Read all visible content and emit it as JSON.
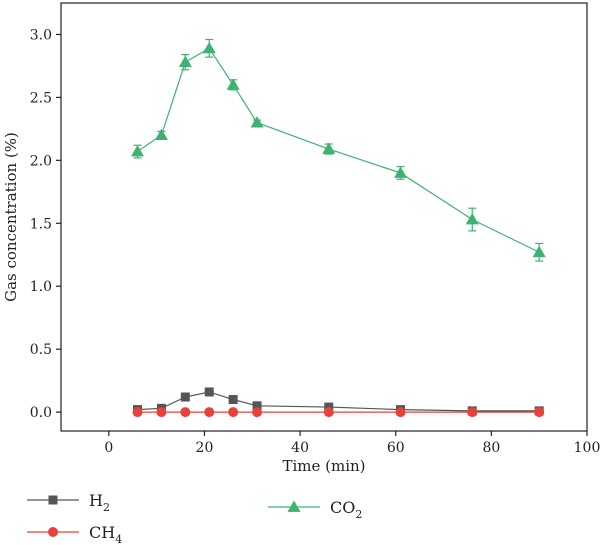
{
  "chart_data": {
    "type": "line",
    "title": "",
    "xlabel": "Time (min)",
    "ylabel": "Gas concentration (%)",
    "xlim": [
      -10,
      100
    ],
    "ylim": [
      -0.15,
      3.25
    ],
    "xticks": [
      0,
      20,
      40,
      60,
      80,
      100
    ],
    "yticks": [
      0.0,
      0.5,
      1.0,
      1.5,
      2.0,
      2.5,
      3.0
    ],
    "xtick_labels": [
      "0",
      "20",
      "40",
      "60",
      "80",
      "100"
    ],
    "ytick_labels": [
      "0.0",
      "0.5",
      "1.0",
      "1.5",
      "2.0",
      "2.5",
      "3.0"
    ],
    "grid": false,
    "legend_position": "bottom-left, below plot",
    "series": [
      {
        "name": "H",
        "name_subscript": "2",
        "color": "#555555",
        "marker": "square",
        "x": [
          6,
          11,
          16,
          21,
          26,
          31,
          46,
          61,
          76,
          90
        ],
        "y": [
          0.02,
          0.03,
          0.12,
          0.16,
          0.1,
          0.05,
          0.04,
          0.02,
          0.01,
          0.01
        ],
        "error": [
          0,
          0,
          0,
          0,
          0,
          0,
          0,
          0,
          0,
          0
        ]
      },
      {
        "name": "CH",
        "name_subscript": "4",
        "color": "#e8413a",
        "marker": "circle",
        "x": [
          6,
          11,
          16,
          21,
          26,
          31,
          46,
          61,
          76,
          90
        ],
        "y": [
          0.0,
          0.0,
          0.0,
          0.0,
          0.0,
          0.0,
          0.0,
          0.0,
          0.0,
          0.0
        ],
        "error": [
          0,
          0,
          0,
          0,
          0,
          0,
          0,
          0,
          0,
          0
        ]
      },
      {
        "name": "CO",
        "name_subscript": "2",
        "color": "#3cb371",
        "marker": "triangle",
        "x": [
          6,
          11,
          16,
          21,
          26,
          31,
          46,
          61,
          76,
          90
        ],
        "y": [
          2.07,
          2.2,
          2.78,
          2.89,
          2.6,
          2.3,
          2.09,
          1.9,
          1.53,
          1.27
        ],
        "error": [
          0.05,
          0.03,
          0.06,
          0.07,
          0.04,
          0.02,
          0.04,
          0.05,
          0.09,
          0.07
        ]
      }
    ]
  }
}
